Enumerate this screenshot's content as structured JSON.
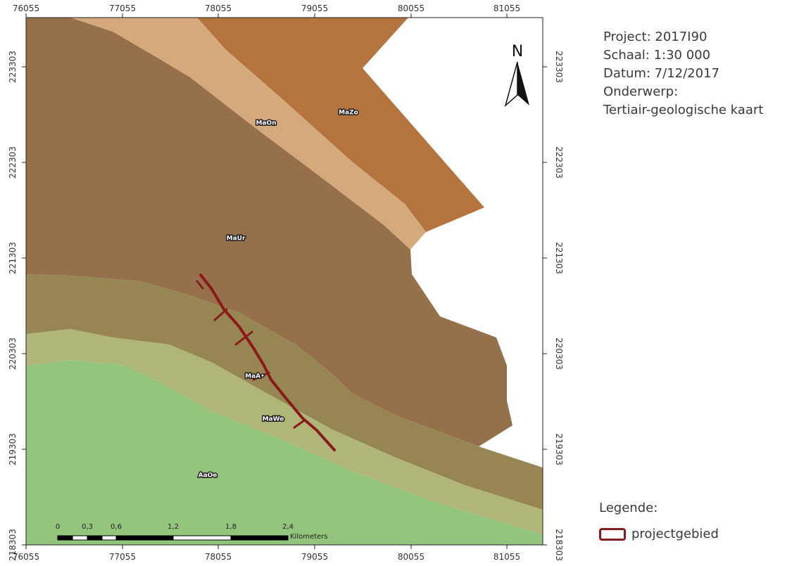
{
  "map": {
    "x_ticks": [
      "76055",
      "77055",
      "78055",
      "79055",
      "80055",
      "81055"
    ],
    "y_ticks": [
      "223303",
      "222303",
      "221303",
      "220303",
      "219303",
      "218303"
    ],
    "units": [
      {
        "code": "MaZo",
        "color": "#b5733e"
      },
      {
        "code": "MaOn",
        "color": "#d4aa7d"
      },
      {
        "code": "MaUr",
        "color": "#95704a"
      },
      {
        "code": "MaAn",
        "color": "#968653"
      },
      {
        "code": "MaWe",
        "color": "#b0b678"
      },
      {
        "code": "AaOe",
        "color": "#93c47d"
      }
    ],
    "unit_labels": [
      "MaZo",
      "MaOn",
      "MaUr",
      "MaA•",
      "MaWe",
      "AaOe"
    ],
    "north_arrow_label": "N",
    "projectgebied_color": "#8b1a1a",
    "scale_bar": {
      "ticks": [
        "0",
        "0,3",
        "0,6",
        "1,2",
        "1,8",
        "2,4"
      ],
      "unit": "Kilometers"
    }
  },
  "info": {
    "project": "Project: 2017I90",
    "schaal": "Schaal: 1:30 000",
    "datum": "Datum: 7/12/2017",
    "onderwerp_label": "Onderwerp:",
    "onderwerp_value": "Tertiair-geologische kaart"
  },
  "legend": {
    "title": "Legende:",
    "item_label": "projectgebied"
  }
}
